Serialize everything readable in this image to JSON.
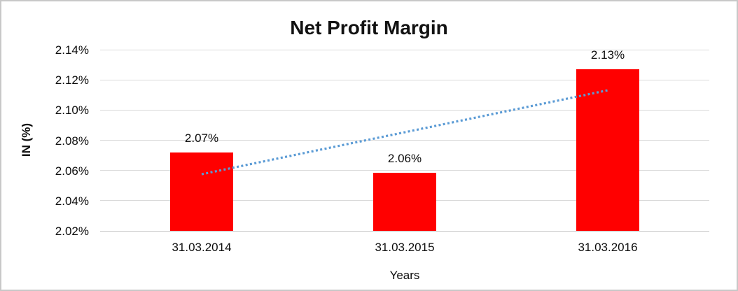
{
  "chart_data": {
    "type": "bar",
    "title": "Net Profit Margin",
    "xlabel": "Years",
    "ylabel": "IN (%)",
    "categories": [
      "31.03.2014",
      "31.03.2015",
      "31.03.2016"
    ],
    "values": [
      2.0719,
      2.0585,
      2.127
    ],
    "value_labels": [
      "2.07%",
      "2.06%",
      "2.13%"
    ],
    "ylim": [
      2.02,
      2.14
    ],
    "ytick_step": 0.02,
    "ytick_labels": [
      "2.02%",
      "2.04%",
      "2.06%",
      "2.08%",
      "2.10%",
      "2.12%",
      "2.14%"
    ],
    "grid": true,
    "legend": "none",
    "bar_color": "#FF0000",
    "text_color": "#0d0d0d",
    "gridline_color": "#d9d9d9",
    "trendline": {
      "type": "linear",
      "style": "dotted",
      "color": "#5B9BD5",
      "start_value": 2.0575,
      "end_value": 2.1131
    }
  }
}
